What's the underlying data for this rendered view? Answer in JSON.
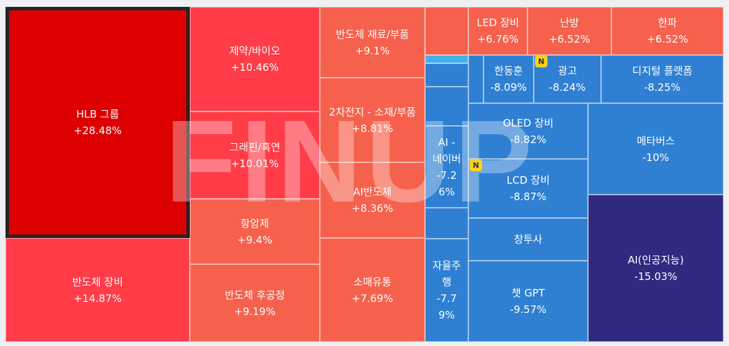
{
  "watermark": "FINUP",
  "colors": {
    "up_strong": "#dd0000",
    "up_mid": "#ff3c48",
    "up_soft": "#f5614c",
    "down_mid": "#2f80d2",
    "down_deep": "#2e2a80",
    "down_light": "#45b1ea",
    "badge": "#f7d21e"
  },
  "badge_label": "N",
  "chart_data": {
    "type": "treemap",
    "title": "",
    "metric": "daily change (%)",
    "items": [
      {
        "name": "HLB 그룹",
        "change": "+28.48%",
        "value": 28.48,
        "color": "#dd0000",
        "selected": true
      },
      {
        "name": "반도체 장비",
        "change": "+14.87%",
        "value": 14.87,
        "color": "#ff3c48"
      },
      {
        "name": "제약/바이오",
        "change": "+10.46%",
        "value": 10.46,
        "color": "#ff3c48"
      },
      {
        "name": "그래핀/흑연",
        "change": "+10.01%",
        "value": 10.01,
        "color": "#ff3c48"
      },
      {
        "name": "항암제",
        "change": "+9.4%",
        "value": 9.4,
        "color": "#f5614c"
      },
      {
        "name": "반도체 후공정",
        "change": "+9.19%",
        "value": 9.19,
        "color": "#f5614c"
      },
      {
        "name": "반도체 재료/부품",
        "change": "+9.1%",
        "value": 9.1,
        "color": "#f5614c"
      },
      {
        "name": "2차전지 - 소재/부품",
        "change": "+8.81%",
        "value": 8.81,
        "color": "#f5614c"
      },
      {
        "name": "AI반도체",
        "change": "+8.36%",
        "value": 8.36,
        "color": "#f5614c"
      },
      {
        "name": "소매유통",
        "change": "+7.69%",
        "value": 7.69,
        "color": "#f5614c"
      },
      {
        "name": "LED 장비",
        "change": "+6.76%",
        "value": 6.76,
        "color": "#f5614c"
      },
      {
        "name": "난방",
        "change": "+6.52%",
        "value": 6.52,
        "color": "#f5614c"
      },
      {
        "name": "한파",
        "change": "+6.52%",
        "value": 6.52,
        "color": "#f5614c"
      },
      {
        "name": "",
        "change": "",
        "value": null,
        "color": "#f5614c"
      },
      {
        "name": "",
        "change": "",
        "value": null,
        "color": "#45b1ea"
      },
      {
        "name": "",
        "change": "",
        "value": null,
        "color": "#2f80d2"
      },
      {
        "name": "",
        "change": "",
        "value": null,
        "color": "#2f80d2"
      },
      {
        "name": "",
        "change": "",
        "value": null,
        "color": "#2f80d2"
      },
      {
        "name": "한동훈",
        "change": "-8.09%",
        "value": -8.09,
        "color": "#2f80d2"
      },
      {
        "name": "광고",
        "change": "-8.24%",
        "value": -8.24,
        "color": "#2f80d2",
        "badge": true
      },
      {
        "name": "디지털 플랫폼",
        "change": "-8.25%",
        "value": -8.25,
        "color": "#2f80d2"
      },
      {
        "name": "AI - 네이버",
        "change": "-7.26%",
        "value": -7.26,
        "color": "#2f80d2"
      },
      {
        "name": "",
        "change": "",
        "value": null,
        "color": "#2f80d2"
      },
      {
        "name": "OLED 장비",
        "change": "-8.82%",
        "value": -8.82,
        "color": "#2f80d2"
      },
      {
        "name": "LCD 장비",
        "change": "-8.87%",
        "value": -8.87,
        "color": "#2f80d2",
        "badge": true
      },
      {
        "name": "메타버스",
        "change": "-10%",
        "value": -10,
        "color": "#2f80d2"
      },
      {
        "name": "창투사",
        "change": "",
        "value": null,
        "color": "#2f80d2"
      },
      {
        "name": "자율주행",
        "change": "-7.79%",
        "value": -7.79,
        "color": "#2f80d2"
      },
      {
        "name": "챗 GPT",
        "change": "-9.57%",
        "value": -9.57,
        "color": "#2f80d2"
      },
      {
        "name": "AI(인공지능)",
        "change": "-15.03%",
        "value": -15.03,
        "color": "#2e2a80"
      }
    ]
  }
}
